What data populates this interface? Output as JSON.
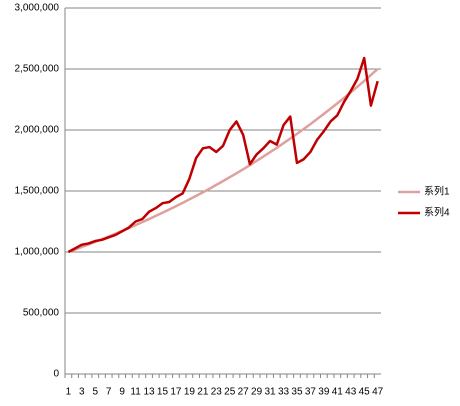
{
  "chart_data": {
    "type": "line",
    "categories": [
      1,
      null,
      3,
      null,
      5,
      null,
      7,
      null,
      9,
      null,
      11,
      null,
      13,
      null,
      15,
      null,
      17,
      null,
      19,
      null,
      21,
      null,
      23,
      null,
      25,
      null,
      27,
      null,
      29,
      null,
      31,
      null,
      33,
      null,
      35,
      null,
      37,
      null,
      39,
      null,
      41,
      null,
      43,
      null,
      45,
      null,
      47
    ],
    "series": [
      {
        "name": "系列1",
        "color": "#e0a09c",
        "values": [
          1000000,
          1020000,
          1041000,
          1062000,
          1083000,
          1105000,
          1127000,
          1150000,
          1173000,
          1196000,
          1220000,
          1245000,
          1270000,
          1296000,
          1322000,
          1348000,
          1375000,
          1403000,
          1431000,
          1460000,
          1489000,
          1519000,
          1550000,
          1581000,
          1613000,
          1645000,
          1678000,
          1712000,
          1747000,
          1782000,
          1818000,
          1854000,
          1892000,
          1930000,
          1968000,
          2008000,
          2048000,
          2090000,
          2132000,
          2175000,
          2218000,
          2263000,
          2309000,
          2355000,
          2402000,
          2451000,
          2500000
        ]
      },
      {
        "name": "系列4",
        "color": "#c00000",
        "values": [
          1000000,
          1030000,
          1060000,
          1070000,
          1090000,
          1100000,
          1120000,
          1140000,
          1170000,
          1200000,
          1250000,
          1270000,
          1330000,
          1360000,
          1400000,
          1410000,
          1450000,
          1480000,
          1600000,
          1770000,
          1850000,
          1860000,
          1820000,
          1870000,
          2000000,
          2070000,
          1960000,
          1720000,
          1800000,
          1850000,
          1910000,
          1880000,
          2040000,
          2110000,
          1730000,
          1760000,
          1820000,
          1920000,
          1990000,
          2070000,
          2120000,
          2230000,
          2320000,
          2420000,
          2590000,
          2200000,
          2400000
        ]
      }
    ],
    "ylim": [
      0,
      3000000
    ],
    "yticks": [
      0,
      {
        "value": 500000,
        "label": "500,000"
      },
      {
        "value": 1000000,
        "label": "1,000,000"
      },
      {
        "value": 1500000,
        "label": "1,500,000"
      },
      {
        "value": 2000000,
        "label": "2,000,000"
      },
      {
        "value": 2500000,
        "label": "2,500,000"
      },
      {
        "value": 3000000,
        "label": "3,000,000"
      }
    ],
    "grid": true,
    "legend": "right"
  }
}
